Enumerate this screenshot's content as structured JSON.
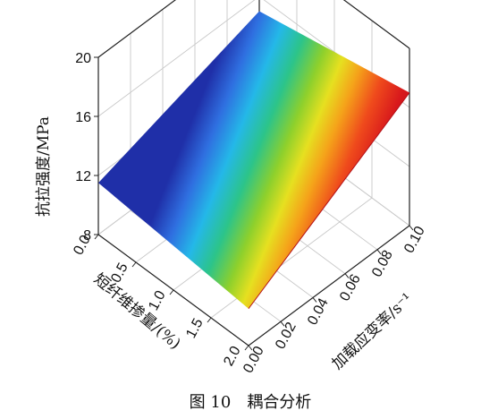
{
  "chart_data": {
    "type": "surface",
    "caption": "图 10　耦合分析",
    "zlabel": "抗拉强度/MPa",
    "xlabel": "短纤维掺量/(%)",
    "ylabel": "加载应变率/s⁻¹",
    "x_ticks": [
      "0.0",
      "0.5",
      "1.0",
      "1.5",
      "2.0"
    ],
    "y_ticks": [
      "0.00",
      "0.02",
      "0.04",
      "0.06",
      "0.08",
      "0.10"
    ],
    "z_ticks": [
      "8",
      "12",
      "16",
      "20"
    ],
    "xlim": [
      0,
      2.0
    ],
    "ylim": [
      0,
      0.1
    ],
    "zlim": [
      8,
      20
    ],
    "surface_corners": [
      {
        "fiber": 0.0,
        "strain_rate": 0.0,
        "strength": 11.5
      },
      {
        "fiber": 0.0,
        "strain_rate": 0.1,
        "strength": 15.0
      },
      {
        "fiber": 2.0,
        "strain_rate": 0.0,
        "strength": 10.5
      },
      {
        "fiber": 2.0,
        "strain_rate": 0.1,
        "strength": 17.0
      }
    ],
    "colormap": "jet"
  }
}
